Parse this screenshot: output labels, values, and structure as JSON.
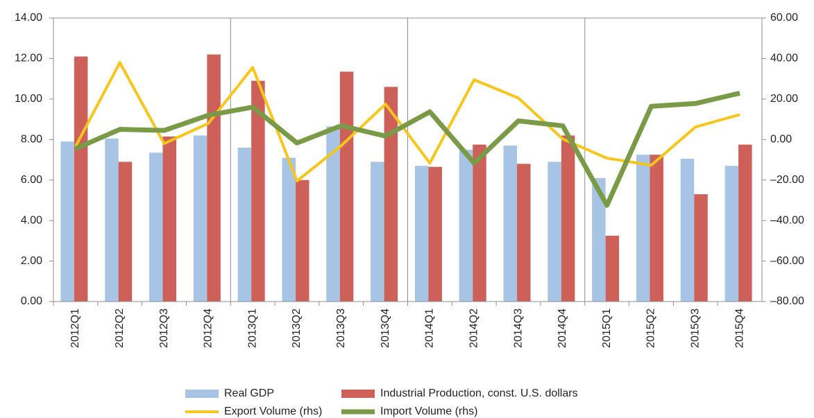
{
  "chart_data": {
    "type": "bar-line",
    "categories": [
      "2012Q1",
      "2012Q2",
      "2012Q3",
      "2012Q4",
      "2013Q1",
      "2013Q2",
      "2013Q3",
      "2013Q4",
      "2014Q1",
      "2014Q2",
      "2014Q3",
      "2014Q4",
      "2015Q1",
      "2015Q2",
      "2015Q3",
      "2015Q4"
    ],
    "series": [
      {
        "name": "Real GDP",
        "type": "bar",
        "color": "#a7c4e5",
        "values": [
          7.9,
          8.05,
          7.35,
          8.2,
          7.6,
          7.1,
          8.65,
          6.9,
          6.7,
          7.5,
          7.7,
          6.9,
          6.1,
          7.25,
          7.05,
          6.7
        ]
      },
      {
        "name": "Industrial Production, const. U.S. dollars",
        "type": "bar",
        "color": "#cd6059",
        "values": [
          12.1,
          6.9,
          8.15,
          12.2,
          10.9,
          6.0,
          11.35,
          10.6,
          6.65,
          7.75,
          6.8,
          8.2,
          3.25,
          7.25,
          5.3,
          7.75
        ]
      },
      {
        "name": "Export Volume (rhs)",
        "type": "line",
        "axis": "y2",
        "color": "#f7c51c",
        "values": [
          -3.4,
          38,
          -2,
          8,
          35.6,
          -20.5,
          -3,
          17.5,
          -11.6,
          29.5,
          20.5,
          0.3,
          -9.2,
          -12.7,
          6.2,
          12.3
        ]
      },
      {
        "name": "Import Volume (rhs)",
        "type": "line",
        "axis": "y2",
        "color": "#7a9a47",
        "values": [
          -4.5,
          5,
          4.5,
          12,
          16,
          -1.7,
          6.8,
          1.7,
          13.7,
          -11.6,
          9.2,
          6.8,
          -32.5,
          16.4,
          17.8,
          22.9
        ]
      }
    ],
    "ylim": [
      0,
      14
    ],
    "yticks": [
      {
        "value": 0,
        "label": "0.00"
      },
      {
        "value": 2,
        "label": "2.00"
      },
      {
        "value": 4,
        "label": "4.00"
      },
      {
        "value": 6,
        "label": "6.00"
      },
      {
        "value": 8,
        "label": "8.00"
      },
      {
        "value": 10,
        "label": "10.00"
      },
      {
        "value": 12,
        "label": "12.00"
      },
      {
        "value": 14,
        "label": "14.00"
      }
    ],
    "y2lim": [
      -80,
      60
    ],
    "y2ticks": [
      {
        "value": -80,
        "label": "–80.00"
      },
      {
        "value": -60,
        "label": "–60.00"
      },
      {
        "value": -40,
        "label": "–40.00"
      },
      {
        "value": -20,
        "label": "–20.00"
      },
      {
        "value": 0,
        "label": "0.00"
      },
      {
        "value": 20,
        "label": "20.00"
      },
      {
        "value": 40,
        "label": "40.00"
      },
      {
        "value": 60,
        "label": "60.00"
      }
    ]
  }
}
